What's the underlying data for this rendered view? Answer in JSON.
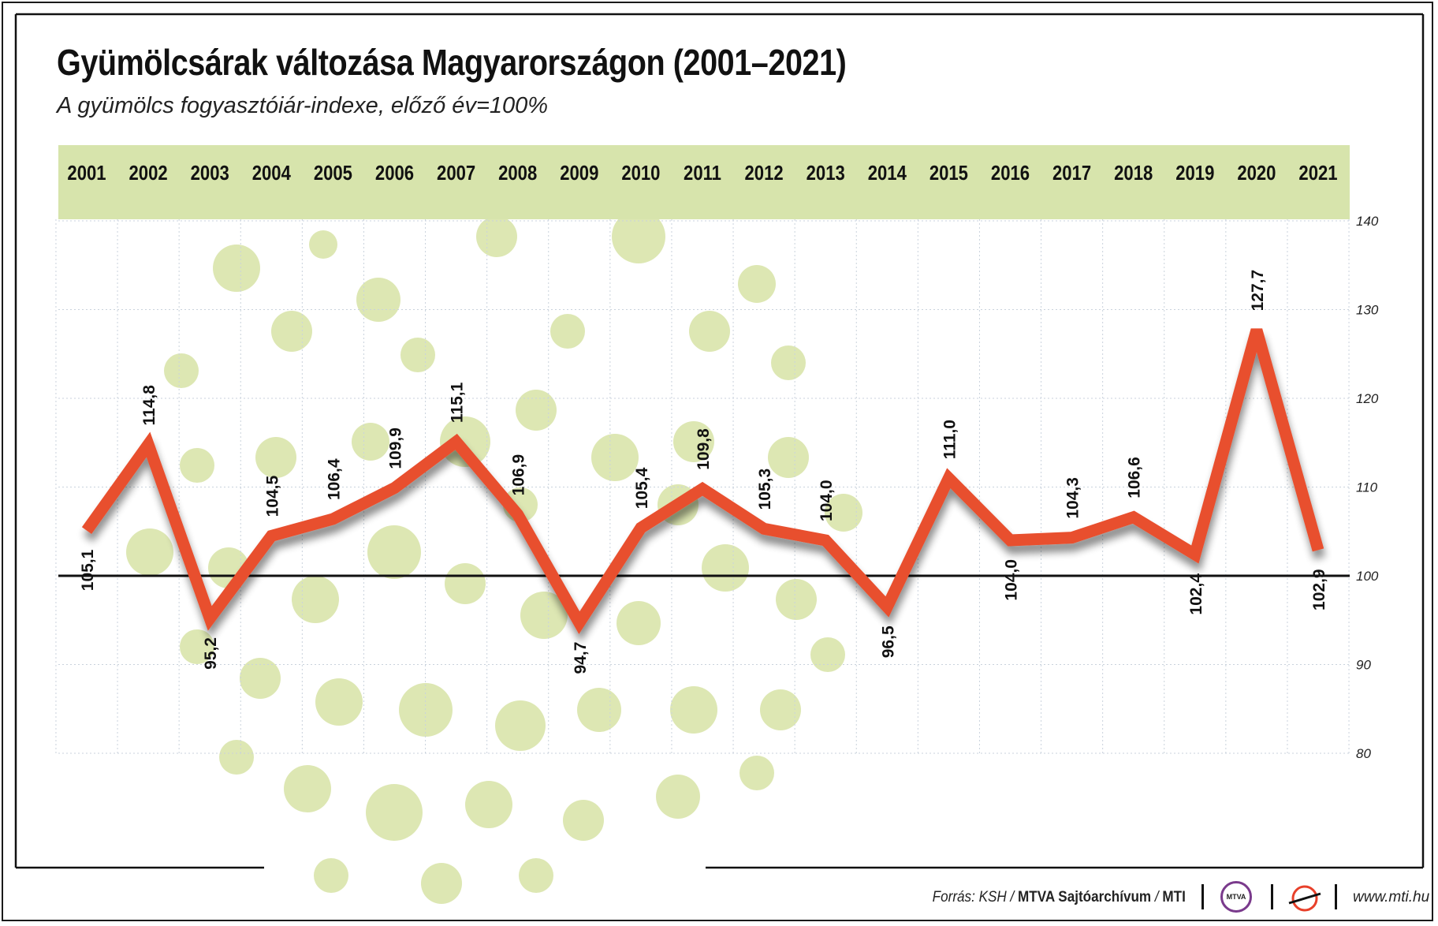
{
  "header": {
    "title": "Gyümölcsárak változása Magyarországon (2001–2021)",
    "subtitle": "A gyümölcs fogyasztóiár-indexe, előző év=100%"
  },
  "chart_data": {
    "type": "line",
    "title": "Gyümölcsárak változása Magyarországon (2001–2021)",
    "subtitle": "A gyümölcs fogyasztóiár-indexe, előző év=100%",
    "categories": [
      "2001",
      "2002",
      "2003",
      "2004",
      "2005",
      "2006",
      "2007",
      "2008",
      "2009",
      "2010",
      "2011",
      "2012",
      "2013",
      "2014",
      "2015",
      "2016",
      "2017",
      "2018",
      "2019",
      "2020",
      "2021"
    ],
    "values": [
      105.1,
      114.8,
      95.2,
      104.5,
      106.4,
      109.9,
      115.1,
      106.9,
      94.7,
      105.4,
      109.8,
      105.3,
      104.0,
      96.5,
      111.0,
      104.0,
      104.3,
      106.6,
      102.4,
      127.7,
      102.9
    ],
    "value_labels": [
      "105,1",
      "114,8",
      "95,2",
      "104,5",
      "106,4",
      "109,9",
      "115,1",
      "106,9",
      "94,7",
      "105,4",
      "109,8",
      "105,3",
      "104,0",
      "96,5",
      "111,0",
      "104,0",
      "104,3",
      "106,6",
      "102,4",
      "127,7",
      "102,9"
    ],
    "ylim": [
      80,
      140
    ],
    "yticks": [
      80,
      90,
      100,
      110,
      120,
      130,
      140
    ],
    "ytick_labels": [
      "80",
      "90",
      "100",
      "110",
      "120",
      "130",
      "140"
    ],
    "reference_line": 100,
    "xlabel": "",
    "ylabel": "",
    "grid": true,
    "line_color": "#e8502f",
    "header_band_color": "#d7e4ac",
    "decoration_color": "#dde7b3"
  },
  "footer": {
    "source_prefix": "Forrás: KSH / ",
    "source_archive": "MTVA Sajtóarchívum",
    "source_sep": " / ",
    "source_mti": "MTI",
    "mtva_logo": "MTVA",
    "website": "www.mti.hu"
  }
}
